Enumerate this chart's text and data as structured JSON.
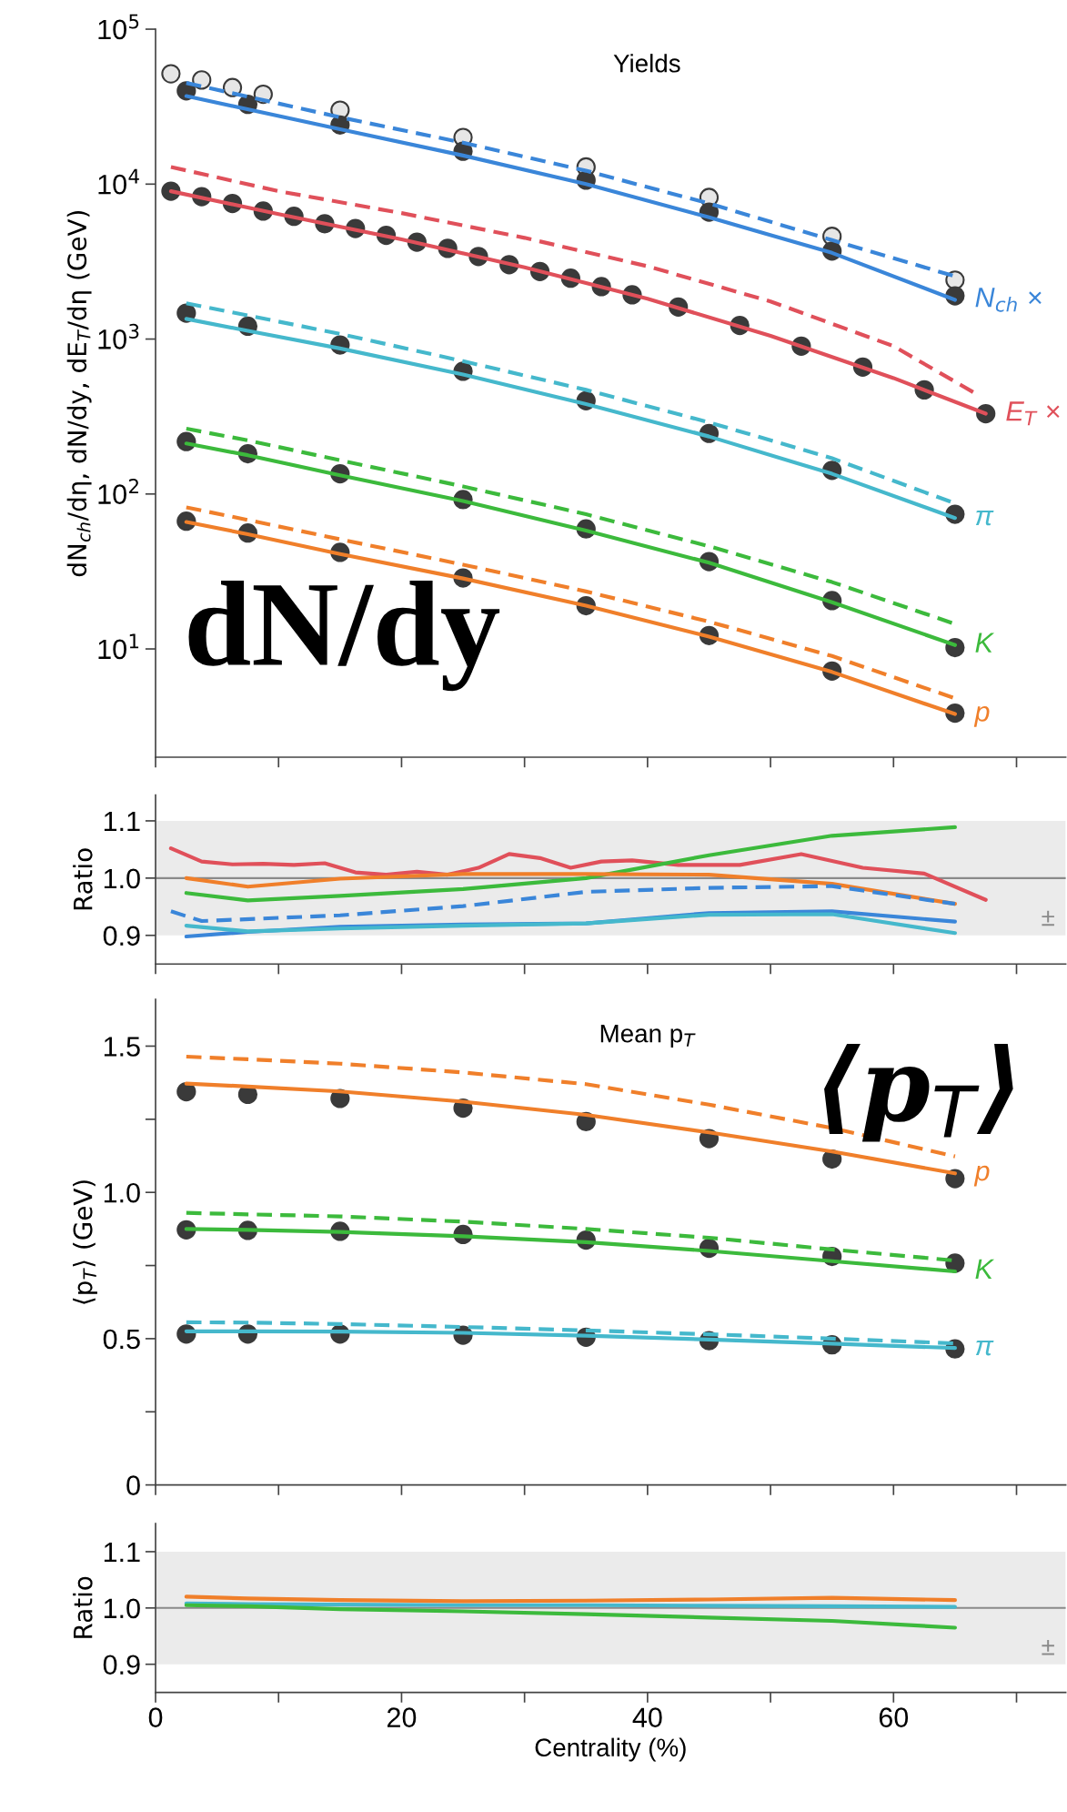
{
  "chart_data": [
    {
      "type": "line",
      "title": "Yields",
      "ylabel": "dN$_{ch}$/dη, dN/dy, dE$_{T}$/dη (GeV)",
      "log": true,
      "tick_labels": "y",
      "xlim": [
        0,
        74
      ],
      "xticks": [
        0,
        {
          "value": 10,
          "label": null
        },
        20,
        {
          "value": 30,
          "label": null
        },
        40,
        {
          "value": 50,
          "label": null
        },
        60,
        {
          "value": 70,
          "label": null
        }
      ],
      "ylim": [
        2,
        100000
      ],
      "yticks": [
        {
          "value": 10,
          "label": "10$^{1}$"
        },
        {
          "value": 100,
          "label": "10$^{2}$"
        },
        {
          "value": 1000,
          "label": "10$^{3}$"
        },
        {
          "value": 10000,
          "label": "10$^{4}$"
        },
        {
          "value": 100000,
          "label": "10$^{5}$"
        }
      ],
      "x": [
        2.5,
        7.5,
        15,
        25,
        35,
        45,
        55,
        65
      ],
      "annotations": [
        "dN/dy"
      ],
      "series": [
        {
          "name": "N$_{ch}$ ×",
          "type": "line",
          "line_style": "solid",
          "color": "#3a86d9",
          "x": [
            2.5,
            15,
            25,
            35,
            45,
            55,
            65
          ],
          "values": [
            37000,
            22600,
            15300,
            10000,
            6100,
            3600,
            1790
          ]
        },
        {
          "type": "line",
          "line_style": "dashed",
          "color": "#3a86d9",
          "x": [
            2.5,
            15,
            25,
            35,
            45,
            55,
            65
          ],
          "values": [
            45000,
            27000,
            18500,
            12200,
            7500,
            4350,
            2540
          ]
        },
        {
          "name": "E$_{T}$ ×",
          "type": "line",
          "line_style": "solid",
          "color": "#e0505a",
          "x": [
            1.25,
            10,
            20,
            30,
            40,
            50,
            60,
            67.5
          ],
          "values": [
            9000,
            6400,
            4400,
            2900,
            1820,
            1050,
            560,
            330
          ]
        },
        {
          "type": "line",
          "line_style": "dashed",
          "color": "#e0505a",
          "x": [
            1.25,
            10,
            20,
            30,
            40,
            50,
            60,
            67
          ],
          "values": [
            12900,
            9000,
            6500,
            4500,
            2950,
            1750,
            900,
            430
          ]
        },
        {
          "name": "π",
          "type": "line",
          "line_style": "solid",
          "color": "#45b8cc",
          "values": [
            1350,
            1130,
            870,
            590,
            380,
            235,
            135,
            70
          ]
        },
        {
          "type": "line",
          "line_style": "dashed",
          "color": "#45b8cc",
          "values": [
            1700,
            1420,
            1080,
            720,
            470,
            290,
            170,
            87
          ]
        },
        {
          "name": "K",
          "type": "line",
          "line_style": "solid",
          "color": "#3cba3c",
          "values": [
            212,
            178,
            132,
            90,
            58,
            36,
            20,
            10.6
          ]
        },
        {
          "type": "line",
          "line_style": "dashed",
          "color": "#3cba3c",
          "values": [
            264,
            222,
            165,
            112,
            74,
            46,
            27,
            14.5
          ]
        },
        {
          "name": "p",
          "type": "line",
          "line_style": "solid",
          "color": "#f07f2a",
          "values": [
            66,
            55,
            41,
            28.5,
            19,
            12,
            7.1,
            3.8
          ]
        },
        {
          "type": "line",
          "line_style": "dashed",
          "color": "#f07f2a",
          "values": [
            82,
            68,
            51,
            35,
            23.5,
            15,
            9,
            4.8
          ]
        },
        {
          "type": "scatter",
          "marker": "circle",
          "color": "#e6e6e6",
          "x": [
            1.25,
            3.75,
            6.25,
            8.75,
            15,
            25,
            35,
            45,
            55,
            65
          ],
          "values": [
            51500,
            47000,
            42000,
            38000,
            30000,
            20000,
            12900,
            8200,
            4600,
            2400
          ]
        },
        {
          "type": "scatter",
          "marker": "circle",
          "color": "#3a3a3a",
          "values": [
            40000,
            32700,
            24100,
            16300,
            10600,
            6600,
            3700,
            1900
          ]
        },
        {
          "type": "scatter",
          "marker": "circle",
          "color": "#3a3a3a",
          "x": [
            1.25,
            3.75,
            6.25,
            8.75,
            11.25,
            13.75,
            16.25,
            18.75,
            21.25,
            23.75,
            26.25,
            28.75,
            31.25,
            33.75,
            36.25,
            38.75,
            42.5,
            47.5,
            52.5,
            57.5,
            62.5,
            67.5
          ],
          "values": [
            9000,
            8300,
            7500,
            6700,
            6200,
            5550,
            5170,
            4670,
            4220,
            3850,
            3410,
            3020,
            2730,
            2470,
            2180,
            1930,
            1610,
            1225,
            900,
            660,
            470,
            330
          ]
        },
        {
          "type": "scatter",
          "marker": "circle",
          "color": "#3a3a3a",
          "values": [
            1470,
            1210,
            915,
            620,
            400,
            246,
            142,
            74
          ]
        },
        {
          "type": "scatter",
          "marker": "circle",
          "color": "#3a3a3a",
          "values": [
            218,
            182,
            135,
            92,
            59.5,
            36.6,
            20.5,
            10.2
          ]
        },
        {
          "type": "scatter",
          "marker": "circle",
          "color": "#3a3a3a",
          "values": [
            66.7,
            56,
            42,
            28.7,
            19,
            12.2,
            7.2,
            3.85
          ]
        }
      ]
    },
    {
      "type": "line",
      "ylabel": "Ratio",
      "tick_labels": "y",
      "xlim": [
        0,
        74
      ],
      "xticks": [
        0,
        {
          "value": 10,
          "label": null
        },
        20,
        {
          "value": 30,
          "label": null
        },
        40,
        {
          "value": 50,
          "label": null
        },
        60,
        {
          "value": 70,
          "label": null
        }
      ],
      "ylim": [
        0.85,
        1.145
      ],
      "yticks": [
        0.9,
        {
          "value": 1.0,
          "label": "1.0"
        },
        1.1
      ],
      "bands": [
        {
          "axis": "y",
          "from": 0.9,
          "to": 1.1,
          "color": "#ebebeb"
        }
      ],
      "ref_lines": [
        {
          "axis": "y",
          "value": 1.0,
          "color": "#8a8a8a"
        }
      ],
      "annotations": [
        "±"
      ],
      "x": [
        2.5,
        7.5,
        15,
        25,
        35,
        45,
        55,
        65
      ],
      "series": [
        {
          "type": "line",
          "line_style": "solid",
          "color": "#e0505a",
          "x": [
            1.25,
            3.75,
            6.25,
            8.75,
            11.25,
            13.75,
            16.25,
            18.75,
            21.25,
            23.75,
            26.25,
            28.75,
            31.25,
            33.75,
            36.25,
            38.75,
            42.5,
            47.5,
            52.5,
            57.5,
            62.5,
            67.5
          ],
          "values": [
            1.052,
            1.029,
            1.024,
            1.025,
            1.023,
            1.026,
            1.01,
            1.006,
            1.011,
            1.006,
            1.018,
            1.042,
            1.035,
            1.018,
            1.029,
            1.031,
            1.023,
            1.023,
            1.042,
            1.018,
            1.008,
            0.962
          ]
        },
        {
          "type": "line",
          "line_style": "solid",
          "color": "#3cba3c",
          "values": [
            0.974,
            0.961,
            0.969,
            0.981,
            1.0,
            1.04,
            1.074,
            1.089
          ]
        },
        {
          "type": "line",
          "line_style": "solid",
          "color": "#f07f2a",
          "values": [
            1.0,
            0.985,
            0.999,
            1.007,
            1.007,
            1.006,
            0.99,
            0.955
          ]
        },
        {
          "type": "line",
          "line_style": "dashed",
          "color": "#3a86d9",
          "x": [
            1.25,
            3.75,
            15,
            25,
            35,
            45,
            55,
            65
          ],
          "values": [
            0.942,
            0.925,
            0.935,
            0.951,
            0.976,
            0.983,
            0.986,
            0.955
          ]
        },
        {
          "type": "line",
          "line_style": "solid",
          "color": "#3a86d9",
          "values": [
            0.898,
            0.906,
            0.915,
            0.919,
            0.921,
            0.939,
            0.942,
            0.924
          ]
        },
        {
          "type": "line",
          "line_style": "solid",
          "color": "#45b8cc",
          "values": [
            0.917,
            0.907,
            0.912,
            0.917,
            0.921,
            0.936,
            0.937,
            0.904
          ]
        }
      ]
    },
    {
      "type": "line",
      "title": "Mean p$_{T}$",
      "ylabel": "⟨p$_{T}$⟩ (GeV)",
      "tick_labels": "y",
      "xlim": [
        0,
        74
      ],
      "xticks": [
        0,
        {
          "value": 10,
          "label": null
        },
        20,
        {
          "value": 30,
          "label": null
        },
        40,
        {
          "value": 50,
          "label": null
        },
        60,
        {
          "value": 70,
          "label": null
        }
      ],
      "ylim": [
        0,
        1.66
      ],
      "yticks": [
        0,
        {
          "value": 0.25,
          "label": null
        },
        0.5,
        {
          "value": 0.75,
          "label": null
        },
        {
          "value": 1.0,
          "label": "1.0"
        },
        {
          "value": 1.25,
          "label": null
        },
        1.5
      ],
      "annotations": [
        "⟨p$_{T}$⟩"
      ],
      "x": [
        2.5,
        7.5,
        15,
        25,
        35,
        45,
        55,
        65
      ],
      "series": [
        {
          "name": "p",
          "type": "line",
          "line_style": "solid",
          "color": "#f07f2a",
          "values": [
            1.372,
            1.362,
            1.345,
            1.31,
            1.265,
            1.205,
            1.14,
            1.065
          ]
        },
        {
          "type": "line",
          "line_style": "dashed",
          "color": "#f07f2a",
          "values": [
            1.464,
            1.455,
            1.44,
            1.41,
            1.37,
            1.3,
            1.22,
            1.123
          ]
        },
        {
          "name": "K",
          "type": "line",
          "line_style": "solid",
          "color": "#3cba3c",
          "values": [
            0.875,
            0.872,
            0.865,
            0.85,
            0.83,
            0.8,
            0.765,
            0.73
          ]
        },
        {
          "type": "line",
          "line_style": "dashed",
          "color": "#3cba3c",
          "values": [
            0.93,
            0.925,
            0.918,
            0.9,
            0.875,
            0.845,
            0.805,
            0.767
          ]
        },
        {
          "name": "π",
          "type": "line",
          "line_style": "solid",
          "color": "#45b8cc",
          "values": [
            0.525,
            0.525,
            0.524,
            0.52,
            0.51,
            0.497,
            0.483,
            0.468
          ]
        },
        {
          "type": "line",
          "line_style": "dashed",
          "color": "#45b8cc",
          "values": [
            0.556,
            0.555,
            0.55,
            0.54,
            0.528,
            0.515,
            0.5,
            0.484
          ]
        },
        {
          "type": "scatter",
          "marker": "circle",
          "color": "#3a3a3a",
          "values": [
            1.344,
            1.335,
            1.321,
            1.288,
            1.242,
            1.184,
            1.114,
            1.047
          ]
        },
        {
          "type": "scatter",
          "marker": "circle",
          "color": "#3a3a3a",
          "values": [
            0.872,
            0.87,
            0.867,
            0.856,
            0.837,
            0.809,
            0.781,
            0.758
          ]
        },
        {
          "type": "scatter",
          "marker": "circle",
          "color": "#3a3a3a",
          "values": [
            0.516,
            0.516,
            0.516,
            0.512,
            0.505,
            0.493,
            0.479,
            0.465
          ]
        }
      ]
    },
    {
      "type": "line",
      "ylabel": "Ratio",
      "xlabel": "Centrality (%)",
      "xlim": [
        0,
        74
      ],
      "xticks": [
        0,
        {
          "value": 10,
          "label": null
        },
        20,
        {
          "value": 30,
          "label": null
        },
        40,
        {
          "value": 50,
          "label": null
        },
        60,
        {
          "value": 70,
          "label": null
        }
      ],
      "ylim": [
        0.85,
        1.15
      ],
      "yticks": [
        0.9,
        {
          "value": 1.0,
          "label": "1.0"
        },
        1.1
      ],
      "bands": [
        {
          "axis": "y",
          "from": 0.9,
          "to": 1.1,
          "color": "#ebebeb"
        }
      ],
      "ref_lines": [
        {
          "axis": "y",
          "value": 1.0,
          "color": "#8a8a8a"
        }
      ],
      "annotations": [
        "±"
      ],
      "x": [
        2.5,
        7.5,
        15,
        25,
        35,
        45,
        55,
        65
      ],
      "series": [
        {
          "type": "line",
          "line_style": "solid",
          "color": "#45b8cc",
          "values": [
            1.008,
            1.007,
            1.006,
            1.005,
            1.005,
            1.004,
            1.003,
            1.002
          ]
        },
        {
          "type": "line",
          "line_style": "solid",
          "color": "#f07f2a",
          "values": [
            1.02,
            1.017,
            1.014,
            1.012,
            1.013,
            1.015,
            1.018,
            1.014
          ]
        },
        {
          "type": "line",
          "line_style": "solid",
          "color": "#3cba3c",
          "values": [
            1.005,
            1.003,
            0.998,
            0.994,
            0.989,
            0.983,
            0.977,
            0.965
          ]
        }
      ]
    }
  ]
}
